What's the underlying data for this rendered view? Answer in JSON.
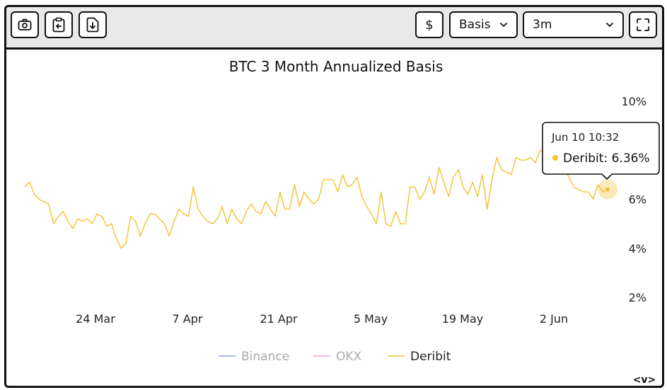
{
  "toolbar": {
    "currency_label": "$",
    "metric_select": "Basis",
    "tenor_select": "3m"
  },
  "colors": {
    "binance": "#8aa8e0",
    "okx": "#f0a8e0",
    "deribit": "#f2c233"
  },
  "pager": {
    "label": "<v>"
  },
  "tooltip": {
    "date": "Jun 10 10:32",
    "series": "Deribit",
    "value": "6.36%"
  },
  "chart_data": {
    "type": "line",
    "title": "BTC 3 Month Annualized Basis",
    "xlabel": "",
    "ylabel": "",
    "x_ticks": [
      "24 Mar",
      "7 Apr",
      "21 Apr",
      "5 May",
      "19 May",
      "2 Jun"
    ],
    "y_ticks": [
      "10%",
      "6%",
      "4%",
      "2%"
    ],
    "ylim": [
      2,
      10
    ],
    "grid": false,
    "legend_position": "bottom",
    "x_start": "2024-03-13",
    "x_end": "2024-06-10",
    "series": [
      {
        "name": "Binance",
        "values": []
      },
      {
        "name": "OKX",
        "values": []
      },
      {
        "name": "Deribit",
        "values": [
          6.5,
          6.7,
          6.2,
          6.0,
          5.9,
          5.8,
          5.0,
          5.3,
          5.5,
          5.1,
          4.8,
          5.2,
          5.1,
          5.2,
          5.0,
          5.4,
          5.3,
          4.9,
          5.0,
          4.4,
          4.0,
          4.2,
          5.3,
          5.1,
          4.5,
          5.0,
          5.4,
          5.4,
          5.2,
          5.0,
          4.5,
          5.1,
          5.6,
          5.4,
          5.3,
          6.5,
          5.6,
          5.3,
          5.1,
          5.0,
          5.2,
          5.7,
          5.0,
          5.6,
          5.2,
          5.0,
          5.5,
          5.8,
          5.5,
          5.4,
          5.9,
          5.6,
          5.3,
          6.3,
          5.6,
          5.6,
          6.6,
          5.7,
          6.3,
          6.0,
          5.8,
          6.0,
          6.8,
          6.8,
          6.8,
          6.3,
          7.0,
          6.5,
          6.6,
          6.9,
          6.1,
          5.7,
          5.4,
          5.0,
          6.3,
          5.0,
          4.9,
          5.5,
          5.0,
          5.0,
          6.5,
          6.5,
          6.0,
          6.3,
          6.9,
          6.2,
          7.3,
          6.7,
          6.1,
          6.9,
          7.2,
          6.5,
          6.2,
          6.7,
          6.1,
          7.0,
          5.6,
          6.8,
          7.7,
          7.2,
          7.1,
          7.0,
          7.7,
          7.6,
          7.6,
          7.7,
          7.5,
          8.0,
          7.9,
          7.8,
          7.7,
          7.5,
          7.2,
          6.9,
          6.5,
          6.4,
          6.3,
          6.3,
          6.0,
          6.6,
          6.3,
          6.4
        ]
      }
    ]
  }
}
